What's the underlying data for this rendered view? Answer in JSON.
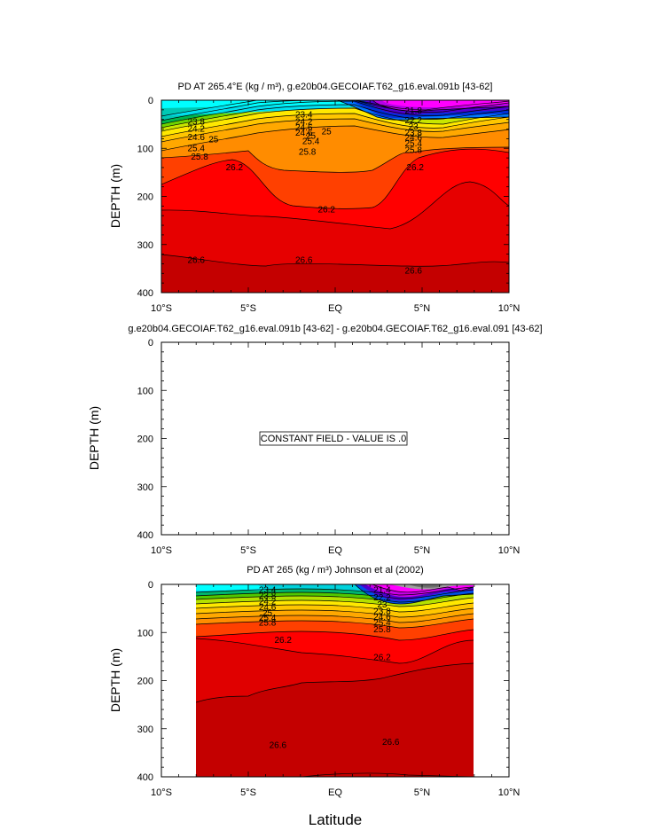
{
  "x_axis": {
    "title": "Latitude",
    "range": [
      -10,
      10
    ],
    "ticks": [
      {
        "value": -10,
        "label": "10°S"
      },
      {
        "value": -5,
        "label": "5°S"
      },
      {
        "value": 0,
        "label": "EQ"
      },
      {
        "value": 5,
        "label": "5°N"
      },
      {
        "value": 10,
        "label": "10°N"
      }
    ]
  },
  "chart_data": [
    {
      "type": "heatmap",
      "title": "PD AT 265.4°E (kg / m³), g.e20b04.GECOIAF.T62_g16.eval.091b [43-62]",
      "xlabel": "Latitude",
      "ylabel": "DEPTH (m)",
      "xlim": [
        -10,
        10
      ],
      "ylim": [
        400,
        0
      ],
      "y_ticks": [
        0,
        100,
        200,
        300,
        400
      ],
      "data_range": [
        -10,
        10
      ],
      "contour_labels": [
        {
          "lat": -8.0,
          "depth": 45,
          "text": "23.8"
        },
        {
          "lat": -8.0,
          "depth": 60,
          "text": "24.2"
        },
        {
          "lat": -8.0,
          "depth": 77,
          "text": "24.6"
        },
        {
          "lat": -7.0,
          "depth": 82,
          "text": "25"
        },
        {
          "lat": -8.0,
          "depth": 100,
          "text": "25.4"
        },
        {
          "lat": -7.8,
          "depth": 118,
          "text": "25.8"
        },
        {
          "lat": -5.8,
          "depth": 140,
          "text": "26.2"
        },
        {
          "lat": -1.8,
          "depth": 30,
          "text": "23.4"
        },
        {
          "lat": -1.8,
          "depth": 45,
          "text": "24.2"
        },
        {
          "lat": -1.8,
          "depth": 57,
          "text": "24.6"
        },
        {
          "lat": -1.8,
          "depth": 68,
          "text": "24.6"
        },
        {
          "lat": -1.4,
          "depth": 75,
          "text": "25"
        },
        {
          "lat": -0.5,
          "depth": 65,
          "text": "25"
        },
        {
          "lat": -1.4,
          "depth": 86,
          "text": "25.4"
        },
        {
          "lat": -1.6,
          "depth": 108,
          "text": "25.8"
        },
        {
          "lat": 4.5,
          "depth": 22,
          "text": "21.8"
        },
        {
          "lat": 4.5,
          "depth": 42,
          "text": "22.2"
        },
        {
          "lat": 4.5,
          "depth": 55,
          "text": "23"
        },
        {
          "lat": 4.5,
          "depth": 68,
          "text": "23.8"
        },
        {
          "lat": 4.5,
          "depth": 78,
          "text": "24.6"
        },
        {
          "lat": 4.5,
          "depth": 90,
          "text": "25.4"
        },
        {
          "lat": 4.5,
          "depth": 104,
          "text": "25.8"
        },
        {
          "lat": 4.6,
          "depth": 140,
          "text": "26.2"
        },
        {
          "lat": -0.5,
          "depth": 228,
          "text": "26.2"
        },
        {
          "lat": -8.0,
          "depth": 333,
          "text": "26.6"
        },
        {
          "lat": -1.8,
          "depth": 333,
          "text": "26.6"
        },
        {
          "lat": 4.5,
          "depth": 355,
          "text": "26.6"
        }
      ]
    },
    {
      "type": "heatmap",
      "title": "g.e20b04.GECOIAF.T62_g16.eval.091b [43-62] - g.e20b04.GECOIAF.T62_g16.eval.091 [43-62]",
      "xlabel": "Latitude",
      "ylabel": "DEPTH (m)",
      "xlim": [
        -10,
        10
      ],
      "ylim": [
        400,
        0
      ],
      "y_ticks": [
        0,
        100,
        200,
        300,
        400
      ],
      "annotation": "CONSTANT FIELD - VALUE IS .0",
      "constant_value": 0.0
    },
    {
      "type": "heatmap",
      "title": "PD AT 265 (kg / m³) Johnson et al (2002)",
      "xlabel": "Latitude",
      "ylabel": "DEPTH (m)",
      "xlim": [
        -10,
        10
      ],
      "ylim": [
        400,
        0
      ],
      "y_ticks": [
        0,
        100,
        200,
        300,
        400
      ],
      "data_range": [
        -8,
        8
      ],
      "contour_labels": [
        {
          "lat": -3.9,
          "depth": 12,
          "text": "23.4"
        },
        {
          "lat": -3.9,
          "depth": 24,
          "text": "23.8"
        },
        {
          "lat": -3.9,
          "depth": 36,
          "text": "24.2"
        },
        {
          "lat": -3.9,
          "depth": 48,
          "text": "24.6"
        },
        {
          "lat": -3.9,
          "depth": 60,
          "text": "25"
        },
        {
          "lat": -3.9,
          "depth": 70,
          "text": "25.4"
        },
        {
          "lat": -3.9,
          "depth": 80,
          "text": "25.8"
        },
        {
          "lat": -3.0,
          "depth": 116,
          "text": "26.2"
        },
        {
          "lat": 2.7,
          "depth": 12,
          "text": "21.4"
        },
        {
          "lat": 2.7,
          "depth": 28,
          "text": "22.2"
        },
        {
          "lat": 2.7,
          "depth": 42,
          "text": "23"
        },
        {
          "lat": 2.7,
          "depth": 56,
          "text": "23.8"
        },
        {
          "lat": 2.7,
          "depth": 68,
          "text": "24.6"
        },
        {
          "lat": 2.7,
          "depth": 80,
          "text": "25.4"
        },
        {
          "lat": 2.7,
          "depth": 94,
          "text": "25.8"
        },
        {
          "lat": 2.7,
          "depth": 152,
          "text": "26.2"
        },
        {
          "lat": -3.3,
          "depth": 335,
          "text": "26.6"
        },
        {
          "lat": 3.2,
          "depth": 328,
          "text": "26.6"
        }
      ]
    }
  ]
}
